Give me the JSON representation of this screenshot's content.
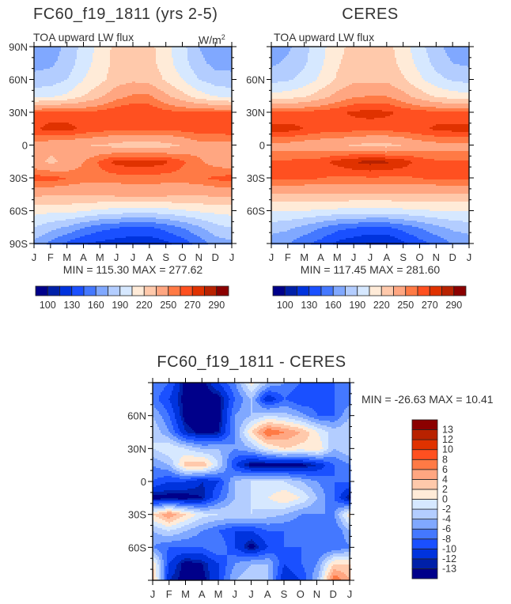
{
  "chart_data": [
    {
      "type": "heatmap",
      "title": "FC60_f19_1811 (yrs 2-5)",
      "left_subtitle": "TOA upward LW flux",
      "right_subtitle": "W/m",
      "units_superscript": "2",
      "stats": "MIN = 115.30 MAX = 277.62",
      "x_ticks": [
        "J",
        "F",
        "M",
        "A",
        "M",
        "J",
        "J",
        "A",
        "S",
        "O",
        "N",
        "D",
        "J"
      ],
      "y_ticks": [
        "90N",
        "60N",
        "30N",
        "0",
        "30S",
        "60S",
        "90S"
      ],
      "y_tick_values": [
        90,
        60,
        30,
        0,
        -30,
        -60,
        -90
      ],
      "lat": [
        90,
        75,
        60,
        45,
        30,
        15,
        0,
        -15,
        -30,
        -45,
        -60,
        -75,
        -90
      ],
      "values": [
        [
          165,
          165,
          180,
          195,
          210,
          225,
          222,
          225,
          210,
          195,
          175,
          165,
          165
        ],
        [
          170,
          172,
          182,
          198,
          212,
          225,
          228,
          226,
          212,
          196,
          180,
          170,
          170
        ],
        [
          180,
          182,
          190,
          205,
          215,
          228,
          232,
          230,
          218,
          205,
          190,
          182,
          180
        ],
        [
          200,
          202,
          208,
          220,
          232,
          245,
          252,
          252,
          238,
          225,
          212,
          204,
          200
        ],
        [
          262,
          264,
          264,
          262,
          264,
          268,
          270,
          268,
          264,
          262,
          262,
          262,
          262
        ],
        [
          268,
          274,
          274,
          268,
          265,
          262,
          262,
          262,
          262,
          264,
          266,
          266,
          268
        ],
        [
          245,
          240,
          238,
          236,
          234,
          230,
          226,
          226,
          230,
          236,
          245,
          245,
          245
        ],
        [
          240,
          232,
          238,
          250,
          262,
          274,
          276,
          276,
          272,
          262,
          252,
          245,
          240
        ],
        [
          265,
          265,
          260,
          255,
          255,
          255,
          255,
          255,
          255,
          255,
          258,
          262,
          265
        ],
        [
          238,
          236,
          236,
          236,
          236,
          238,
          240,
          240,
          238,
          236,
          236,
          238,
          238
        ],
        [
          210,
          208,
          208,
          205,
          200,
          198,
          195,
          195,
          198,
          202,
          206,
          208,
          210
        ],
        [
          190,
          180,
          172,
          160,
          150,
          145,
          142,
          142,
          150,
          160,
          172,
          185,
          190
        ],
        [
          170,
          155,
          140,
          130,
          125,
          122,
          118,
          118,
          125,
          135,
          150,
          165,
          170
        ]
      ],
      "levels": [
        100,
        115,
        130,
        145,
        160,
        175,
        190,
        205,
        220,
        235,
        250,
        260,
        270,
        280,
        290
      ],
      "colorbar_labels": [
        "100",
        "130",
        "160",
        "190",
        "220",
        "250",
        "270",
        "290"
      ]
    },
    {
      "type": "heatmap",
      "title": "CERES",
      "left_subtitle": "TOA upward LW flux",
      "stats": "MIN = 117.45 MAX = 281.60",
      "x_ticks": [
        "J",
        "F",
        "M",
        "A",
        "M",
        "J",
        "J",
        "A",
        "S",
        "O",
        "N",
        "D",
        "J"
      ],
      "y_ticks": [
        "60N",
        "30N",
        "0",
        "30S",
        "60S"
      ],
      "y_tick_values": [
        60,
        30,
        0,
        -30,
        -60
      ],
      "lat": [
        90,
        75,
        60,
        45,
        30,
        15,
        0,
        -15,
        -30,
        -45,
        -60,
        -75,
        -90
      ],
      "values": [
        [
          165,
          172,
          185,
          200,
          215,
          225,
          225,
          225,
          212,
          195,
          180,
          168,
          165
        ],
        [
          172,
          178,
          188,
          202,
          218,
          228,
          228,
          228,
          215,
          200,
          185,
          175,
          172
        ],
        [
          185,
          188,
          195,
          208,
          222,
          232,
          232,
          232,
          222,
          208,
          195,
          188,
          185
        ],
        [
          210,
          212,
          218,
          228,
          240,
          248,
          250,
          250,
          240,
          228,
          218,
          212,
          210
        ],
        [
          262,
          262,
          264,
          265,
          268,
          272,
          274,
          272,
          268,
          265,
          264,
          262,
          262
        ],
        [
          274,
          274,
          270,
          266,
          265,
          264,
          264,
          264,
          265,
          268,
          272,
          274,
          274
        ],
        [
          245,
          245,
          242,
          240,
          238,
          234,
          230,
          230,
          236,
          242,
          245,
          245,
          245
        ],
        [
          262,
          262,
          264,
          266,
          274,
          280,
          284,
          282,
          276,
          266,
          262,
          262,
          262
        ],
        [
          262,
          262,
          262,
          260,
          258,
          258,
          258,
          258,
          258,
          260,
          262,
          262,
          262
        ],
        [
          232,
          232,
          232,
          232,
          232,
          232,
          232,
          232,
          232,
          232,
          232,
          232,
          232
        ],
        [
          205,
          205,
          204,
          202,
          200,
          198,
          198,
          198,
          200,
          202,
          204,
          205,
          205
        ],
        [
          182,
          178,
          170,
          160,
          150,
          145,
          142,
          142,
          150,
          160,
          170,
          178,
          182
        ],
        [
          165,
          160,
          148,
          138,
          125,
          118,
          112,
          112,
          125,
          138,
          148,
          160,
          165
        ]
      ],
      "levels": [
        100,
        115,
        130,
        145,
        160,
        175,
        190,
        205,
        220,
        235,
        250,
        260,
        270,
        280,
        290
      ],
      "colorbar_labels": [
        "100",
        "130",
        "160",
        "190",
        "220",
        "250",
        "270",
        "290"
      ]
    },
    {
      "type": "heatmap",
      "title": "FC60_f19_1811 - CERES",
      "stats": "MIN = -26.63 MAX =  10.41",
      "x_ticks": [
        "J",
        "F",
        "M",
        "A",
        "M",
        "J",
        "J",
        "A",
        "S",
        "O",
        "N",
        "D",
        "J"
      ],
      "y_ticks": [
        "60N",
        "30N",
        "0",
        "30S",
        "60S"
      ],
      "y_tick_values": [
        60,
        30,
        0,
        -30,
        -60
      ],
      "lat": [
        90,
        75,
        60,
        45,
        30,
        15,
        0,
        -15,
        -30,
        -45,
        -60,
        -75,
        -90
      ],
      "values": [
        [
          -6,
          -8,
          -14,
          -14,
          -10,
          -6,
          1,
          -4,
          -6,
          -8,
          -8,
          -8,
          -6
        ],
        [
          -7,
          -10,
          -14,
          -14,
          -14,
          -8,
          -4,
          -12,
          -8,
          -10,
          -9,
          -8,
          -7
        ],
        [
          -4,
          -8,
          -14,
          -14,
          -14,
          -6,
          -4,
          -2,
          -3,
          -5,
          -8,
          -8,
          -4
        ],
        [
          -2,
          -6,
          -12,
          -14,
          -13,
          -6,
          2,
          8,
          6,
          4,
          0,
          -3,
          -2
        ],
        [
          -2,
          0,
          -2,
          -4,
          -4,
          -6,
          -4,
          0,
          2,
          1,
          2,
          -4,
          -2
        ],
        [
          -6,
          -4,
          3,
          4,
          -2,
          -10,
          -14,
          -14,
          -14,
          -14,
          -12,
          -8,
          -6
        ],
        [
          -8,
          -10,
          -10,
          -12,
          -10,
          -4,
          -2,
          -2,
          -2,
          -4,
          -6,
          -8,
          -8
        ],
        [
          -14,
          -14,
          -14,
          -13,
          -8,
          -4,
          -2,
          0,
          2,
          0,
          -4,
          -8,
          -14
        ],
        [
          2,
          6,
          2,
          -1,
          -2,
          -2,
          -2,
          -3,
          -4,
          -6,
          -6,
          -6,
          2
        ],
        [
          -4,
          -2,
          -4,
          -6,
          -8,
          -10,
          -10,
          -8,
          -8,
          -8,
          -8,
          -8,
          -4
        ],
        [
          -6,
          -8,
          -8,
          -8,
          -6,
          -10,
          -14,
          -10,
          -8,
          -8,
          -8,
          -8,
          -6
        ],
        [
          2,
          -10,
          -14,
          -13,
          -10,
          -6,
          -4,
          -4,
          -10,
          -8,
          -6,
          2,
          2
        ],
        [
          4,
          -12,
          -14,
          -14,
          -10,
          -4,
          -2,
          -4,
          -12,
          -10,
          -4,
          8,
          4
        ]
      ],
      "levels": [
        -13,
        -12,
        -10,
        -8,
        -6,
        -4,
        -2,
        0,
        2,
        4,
        6,
        8,
        10,
        12,
        13
      ],
      "colorbar_labels": [
        "-13",
        "-12",
        "-10",
        "-8",
        "-6",
        "-4",
        "-2",
        "0",
        "2",
        "4",
        "6",
        "8",
        "10",
        "12",
        "13"
      ]
    }
  ],
  "palette": [
    "#00008a",
    "#0020a8",
    "#0033dd",
    "#1a50ff",
    "#4478ff",
    "#80a8ff",
    "#b3cdff",
    "#d6e8ff",
    "#ffebd8",
    "#ffc9ab",
    "#ffa681",
    "#ff7a45",
    "#ff5020",
    "#e03200",
    "#b82200",
    "#8b0000"
  ]
}
